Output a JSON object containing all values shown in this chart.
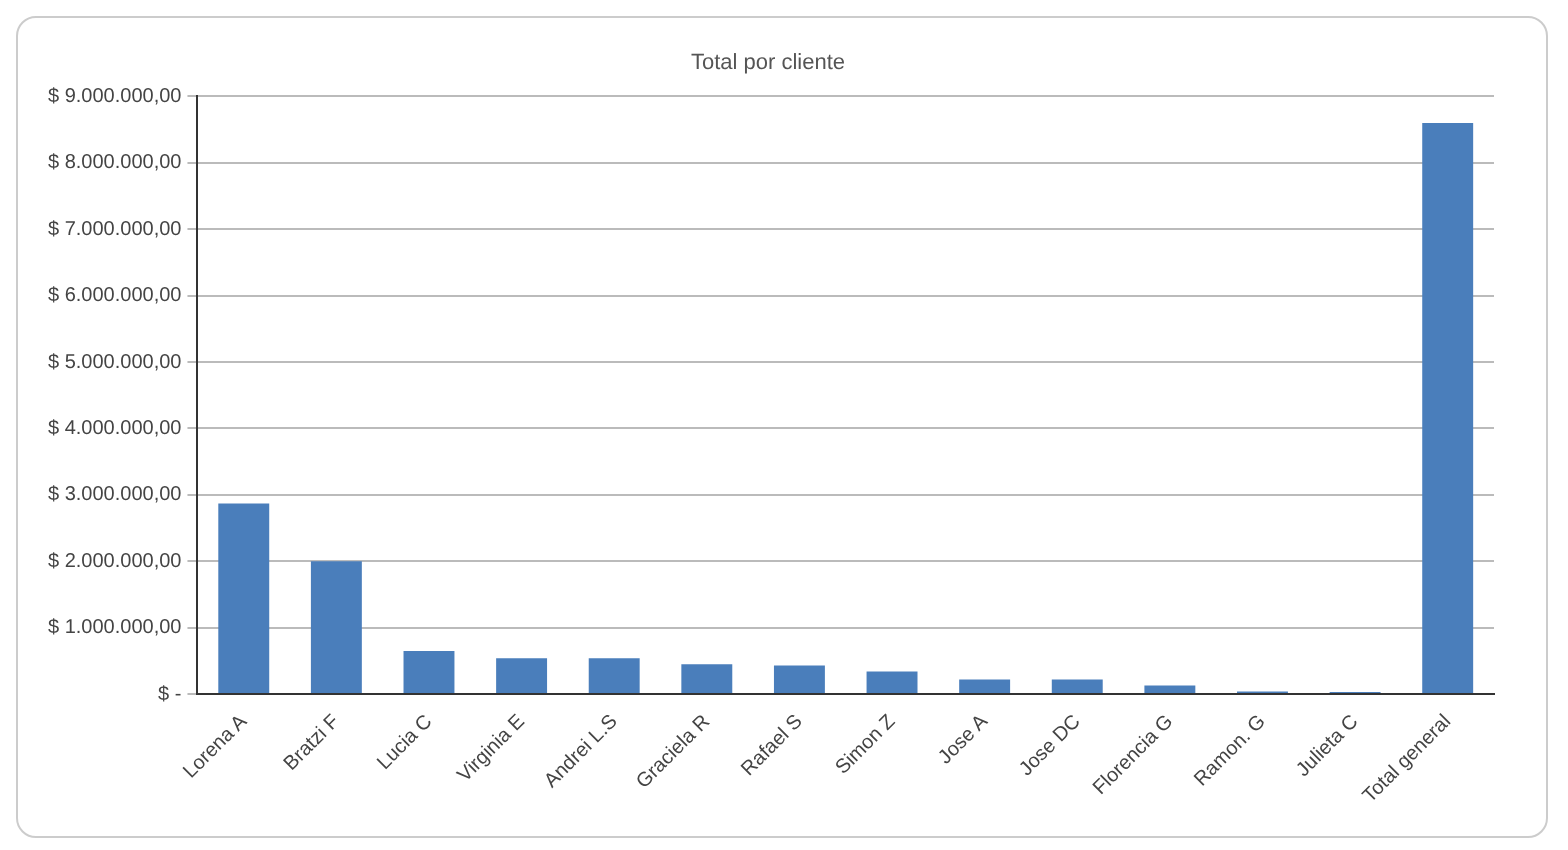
{
  "chart_data": {
    "type": "bar",
    "title": "Total por cliente",
    "categories": [
      "Lorena A",
      "Bratzi F",
      "Lucia C",
      "Virginia E",
      "Andrei L.S",
      "Graciela R",
      "Rafael S",
      "Simon Z",
      "Jose A",
      "Jose DC",
      "Florencia G",
      "Ramon. G",
      "Julieta C",
      "Total general"
    ],
    "values": [
      2870000,
      2000000,
      650000,
      540000,
      540000,
      450000,
      430000,
      340000,
      220000,
      220000,
      130000,
      40000,
      30000,
      8600000
    ],
    "color": "#4a7ebb",
    "ylim": [
      0,
      9000000
    ],
    "yticks": [
      {
        "value": 0,
        "label": "$ -"
      },
      {
        "value": 1000000,
        "label": "$ 1.000.000,00"
      },
      {
        "value": 2000000,
        "label": "$ 2.000.000,00"
      },
      {
        "value": 3000000,
        "label": "$ 3.000.000,00"
      },
      {
        "value": 4000000,
        "label": "$ 4.000.000,00"
      },
      {
        "value": 5000000,
        "label": "$ 5.000.000,00"
      },
      {
        "value": 6000000,
        "label": "$ 6.000.000,00"
      },
      {
        "value": 7000000,
        "label": "$ 7.000.000,00"
      },
      {
        "value": 8000000,
        "label": "$ 8.000.000,00"
      },
      {
        "value": 9000000,
        "label": "$ 9.000.000,00"
      }
    ],
    "grid": "y",
    "legend": false
  }
}
